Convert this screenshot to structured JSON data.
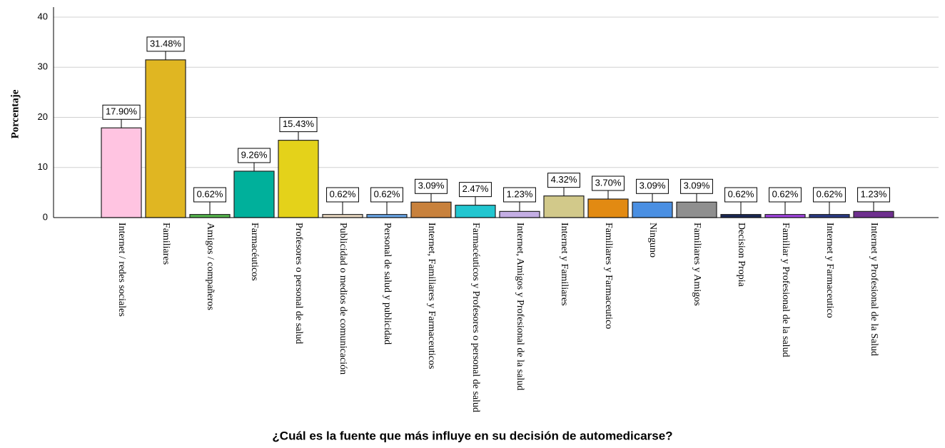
{
  "chart_data": {
    "type": "bar",
    "x_label": "¿Cuál es la fuente que más influye en su decisión de automedicarse?",
    "y_label": "Porcentaje",
    "categories": [
      "Internet / redes sociales",
      "Familiares",
      "Amigos / compañeros",
      "Farmacéuticos",
      "Profesores o personal de salud",
      "Publicidad o medios de comunicación",
      "Personal de salud y publicidad",
      "Internet, Familiares y Farmaceuticos",
      "Farmacéuticos y Profesores o personal de salud",
      "Internet, Amigos y Profesional de la salud",
      "Internet y Familiares",
      "Familiares y Farmaceutico",
      "Ninguno",
      "Familiares y Amigos",
      "Decision Propia",
      "Familiar y Profesional de la salud",
      "Internet y Farmaceutico",
      "Internet y Profesional de la Salud"
    ],
    "values": [
      17.9,
      31.48,
      0.62,
      9.26,
      15.43,
      0.62,
      0.62,
      3.09,
      2.47,
      1.23,
      4.32,
      3.7,
      3.09,
      3.09,
      0.62,
      0.62,
      0.62,
      1.23
    ],
    "value_labels": [
      "17.90%",
      "31.48%",
      "0.62%",
      "9.26%",
      "15.43%",
      "0.62%",
      "0.62%",
      "3.09%",
      "2.47%",
      "1.23%",
      "4.32%",
      "3.70%",
      "3.09%",
      "3.09%",
      "0.62%",
      "0.62%",
      "0.62%",
      "1.23%"
    ],
    "colors": [
      "#ffc4e1",
      "#e0b622",
      "#56b84e",
      "#00b09b",
      "#e4d21a",
      "#ead9c2",
      "#6aa8ea",
      "#c8813c",
      "#22c6d0",
      "#c4aee4",
      "#d2c98a",
      "#e28a12",
      "#4a8fe2",
      "#8f8f8f",
      "#1a2856",
      "#a244e2",
      "#2b3c88",
      "#6e2f8e"
    ],
    "ylim": [
      0,
      42
    ],
    "yticks": [
      0,
      10,
      20,
      30,
      40
    ],
    "grid": true
  }
}
